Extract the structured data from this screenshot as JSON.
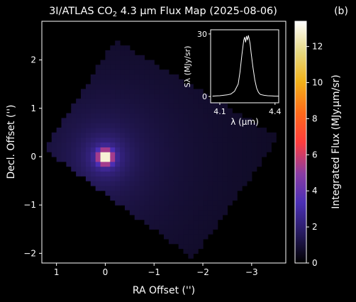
{
  "chart_data": {
    "type": "heatmap",
    "title": "3I/ATLAS CO",
    "title_sub": "2",
    "title_rest": " 4.3 μm Flux Map (2025-08-06)",
    "panel_label": "(b)",
    "xlabel": "RA Offset ('')",
    "ylabel": "Decl. Offset ('')",
    "xlim": [
      1.3,
      -3.7
    ],
    "ylim": [
      -2.2,
      2.8
    ],
    "x_ticks": [
      1,
      0,
      -1,
      -2,
      -3
    ],
    "x_tick_labels": [
      "1",
      "0",
      "−1",
      "−2",
      "−3"
    ],
    "y_ticks": [
      2,
      1,
      0,
      -1,
      -2
    ],
    "y_tick_labels": [
      "2",
      "1",
      "0",
      "−1",
      "−2"
    ],
    "colormap": "CMRmap",
    "colorbar": {
      "label": "Integrated Flux (MJy.μm/sr)",
      "range": [
        0,
        13.4
      ],
      "ticks": [
        0,
        2,
        4,
        6,
        8,
        10,
        12
      ],
      "tick_labels": [
        "0",
        "2",
        "4",
        "6",
        "8",
        "10",
        "12"
      ]
    },
    "peak": {
      "x": 0.0,
      "y": 0.0,
      "value": 13.4
    },
    "footprint_corners": [
      [
        -0.2,
        2.4
      ],
      [
        1.25,
        0.15
      ],
      [
        -1.8,
        -2.1
      ],
      [
        -3.55,
        0.4
      ]
    ],
    "pixel_scale_arcsec": 0.1,
    "inset": {
      "type": "line",
      "xlabel": "λ (μm)",
      "ylabel": "Sλ (MJy/sr)",
      "xlim": [
        4.05,
        4.42
      ],
      "ylim": [
        -3,
        32
      ],
      "x_ticks": [
        4.1,
        4.4
      ],
      "x_tick_labels": [
        "4.1",
        "4.4"
      ],
      "y_ticks": [
        0,
        30
      ],
      "y_tick_labels": [
        "0",
        "30"
      ],
      "x": [
        4.06,
        4.08,
        4.1,
        4.12,
        4.14,
        4.16,
        4.18,
        4.2,
        4.21,
        4.22,
        4.23,
        4.235,
        4.24,
        4.245,
        4.25,
        4.255,
        4.26,
        4.265,
        4.27,
        4.28,
        4.29,
        4.3,
        4.31,
        4.32,
        4.34,
        4.36,
        4.38,
        4.4,
        4.42
      ],
      "y": [
        0.2,
        0.3,
        0.4,
        0.6,
        0.8,
        1.2,
        2.5,
        6,
        12,
        20,
        27,
        28.5,
        26,
        29,
        27,
        29.3,
        27.5,
        25,
        21,
        14,
        8,
        4,
        2,
        1,
        0.6,
        0.4,
        0.3,
        0.2,
        0.2
      ]
    }
  }
}
